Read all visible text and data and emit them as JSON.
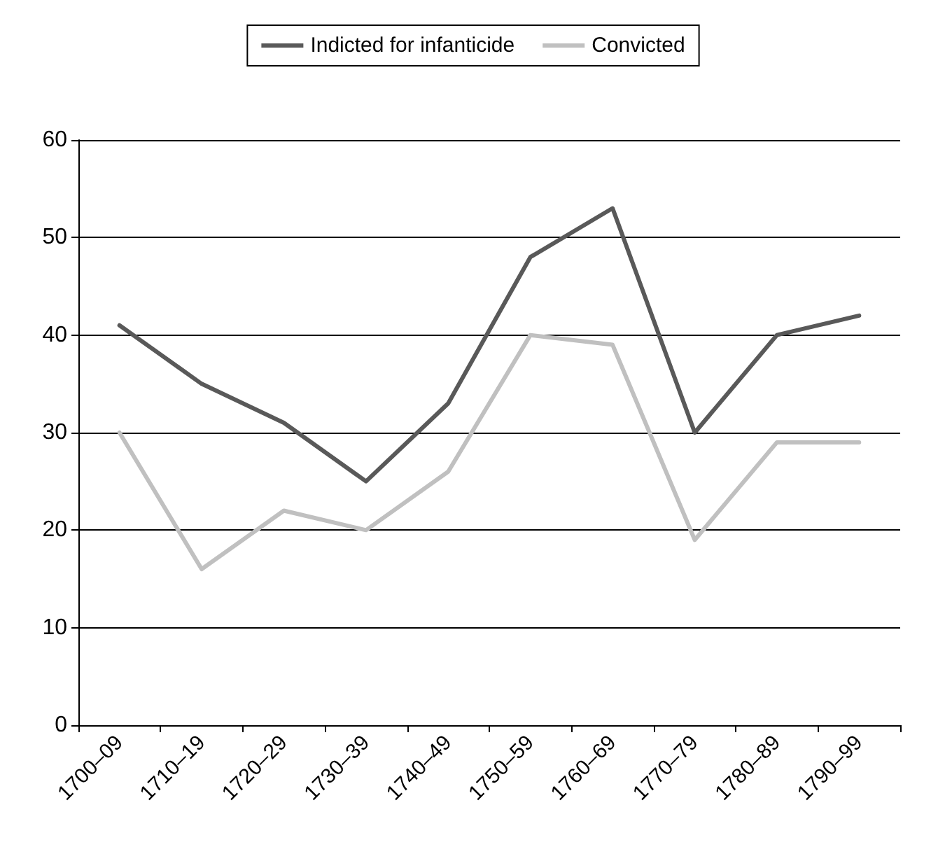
{
  "chart_data": {
    "type": "line",
    "categories": [
      "1700–09",
      "1710–19",
      "1720–29",
      "1730–39",
      "1740–49",
      "1750–59",
      "1760–69",
      "1770–79",
      "1780–89",
      "1790–99"
    ],
    "series": [
      {
        "name": "Indicted for infanticide",
        "color": "#595959",
        "values": [
          41,
          35,
          31,
          25,
          33,
          48,
          53,
          30,
          40,
          42
        ]
      },
      {
        "name": "Convicted",
        "color": "#c0c0c0",
        "values": [
          30,
          16,
          22,
          20,
          26,
          40,
          39,
          19,
          29,
          29
        ]
      }
    ],
    "ylim": [
      0,
      60
    ],
    "yticks": [
      0,
      10,
      20,
      30,
      40,
      50,
      60
    ],
    "grid": "y",
    "legend": "top",
    "marker": "none",
    "line_style": "solid"
  }
}
